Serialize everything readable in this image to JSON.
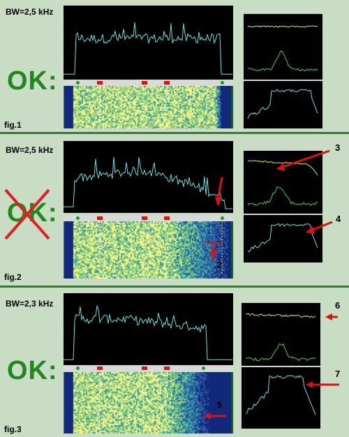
{
  "panels": [
    {
      "bw": "BW=2,5 kHz",
      "fig": "fig.1",
      "ok": "OK:",
      "crossed": false,
      "callouts": []
    },
    {
      "bw": "BW=2,5 kHz",
      "fig": "fig.2",
      "ok": "OK:",
      "crossed": true,
      "callouts": [
        {
          "label": "1"
        },
        {
          "label": "2"
        },
        {
          "label": "3"
        },
        {
          "label": "4"
        }
      ]
    },
    {
      "bw": "BW=2,3 kHz",
      "fig": "fig.3",
      "ok": "OK:",
      "crossed": false,
      "callouts": [
        {
          "label": "5"
        },
        {
          "label": "6"
        },
        {
          "label": "7"
        }
      ]
    }
  ],
  "colors": {
    "background": "#c9dcc4",
    "ok_text": "#1e8a1e",
    "cross": "#e02020",
    "arrow": "#e01010",
    "spectrum_line": "#6de0e0",
    "yellow_trace": "#e6e640",
    "green_trace": "#40d040",
    "divider": "#2e7d32"
  }
}
